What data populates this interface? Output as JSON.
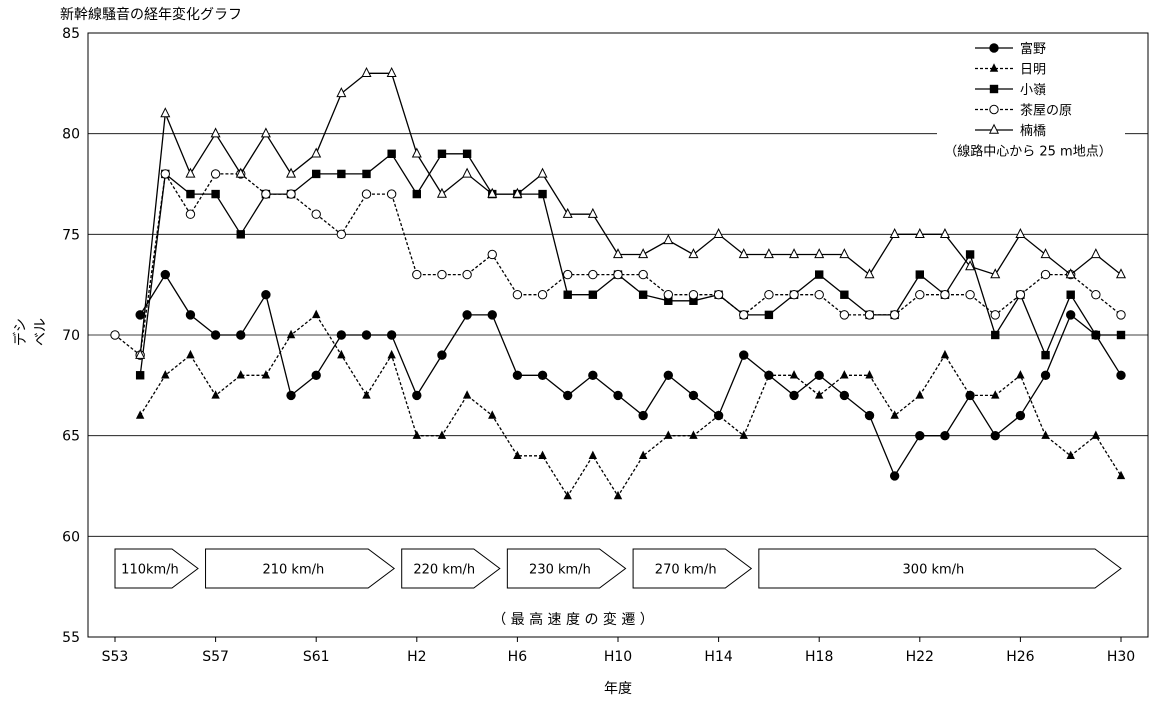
{
  "chart_data": {
    "type": "line",
    "title": "新幹線騒音の経年変化グラフ",
    "xlabel": "年度",
    "ylabel": "デシベル",
    "ylim": [
      55,
      85
    ],
    "yticks": [
      55,
      60,
      65,
      70,
      75,
      80,
      85
    ],
    "x_tick_labels": [
      "S53",
      "S57",
      "S61",
      "H2",
      "H6",
      "H10",
      "H14",
      "H18",
      "H22",
      "H26",
      "H30"
    ],
    "x": [
      "S53",
      "S54",
      "S55",
      "S56",
      "S57",
      "S58",
      "S59",
      "S60",
      "S61",
      "S62",
      "S63",
      "H1",
      "H2",
      "H3",
      "H4",
      "H5",
      "H6",
      "H7",
      "H8",
      "H9",
      "H10",
      "H11",
      "H12",
      "H13",
      "H14",
      "H15",
      "H16",
      "H17",
      "H18",
      "H19",
      "H20",
      "H21",
      "H22",
      "H23",
      "H24",
      "H25",
      "H26",
      "H27",
      "H28",
      "H29",
      "H30"
    ],
    "grid": "horizontal",
    "legend_placement": "top-right",
    "legend_note": "（線路中心から 25 m地点）",
    "series": [
      {
        "name": "富野",
        "style": "solid",
        "marker": "filled-circle",
        "values": [
          null,
          71,
          73,
          71,
          70,
          70,
          72,
          67,
          68,
          70,
          70,
          70,
          67,
          69,
          71,
          71,
          68,
          68,
          67,
          68,
          67,
          66,
          68,
          67,
          66,
          69,
          68,
          67,
          68,
          67,
          66,
          63,
          65,
          65,
          67,
          65,
          66,
          68,
          71,
          70,
          68
        ]
      },
      {
        "name": "日明",
        "style": "dashed",
        "marker": "filled-triangle",
        "values": [
          null,
          66,
          68,
          69,
          67,
          68,
          68,
          70,
          71,
          69,
          67,
          69,
          65,
          65,
          67,
          66,
          64,
          64,
          62,
          64,
          62,
          64,
          65,
          65,
          66,
          65,
          68,
          68,
          67,
          68,
          68,
          66,
          67,
          69,
          67,
          67,
          68,
          65,
          64,
          65,
          63
        ]
      },
      {
        "name": "小嶺",
        "style": "solid",
        "marker": "filled-square",
        "values": [
          null,
          68,
          78,
          77,
          77,
          75,
          77,
          77,
          78,
          78,
          78,
          79,
          77,
          79,
          79,
          77,
          77,
          77,
          72,
          72,
          73,
          72,
          71.7,
          71.7,
          72,
          71,
          71,
          72,
          73,
          72,
          71,
          71,
          73,
          72,
          74,
          70,
          72,
          69,
          72,
          70,
          70
        ]
      },
      {
        "name": "茶屋の原",
        "style": "dashed",
        "marker": "open-circle",
        "values": [
          70,
          69,
          78,
          76,
          78,
          78,
          77,
          77,
          76,
          75,
          77,
          77,
          73,
          73,
          73,
          74,
          72,
          72,
          73,
          73,
          73,
          73,
          72,
          72,
          72,
          71,
          72,
          72,
          72,
          71,
          71,
          71,
          72,
          72,
          72,
          71,
          72,
          73,
          73,
          72,
          71
        ]
      },
      {
        "name": "楠橋",
        "style": "solid",
        "marker": "open-triangle",
        "values": [
          null,
          69,
          81,
          78,
          80,
          78,
          80,
          78,
          79,
          82,
          83,
          83,
          79,
          77,
          78,
          77,
          77,
          78,
          76,
          76,
          74,
          74,
          74.7,
          74,
          75,
          74,
          74,
          74,
          74,
          74,
          73,
          75,
          75,
          75,
          73.4,
          73,
          75,
          74,
          73,
          74,
          73
        ]
      }
    ],
    "speed_bands": [
      {
        "label": "110km/h",
        "start": 0,
        "end": 3.3
      },
      {
        "label": "210 km/h",
        "start": 3.6,
        "end": 11.1
      },
      {
        "label": "220 km/h",
        "start": 11.4,
        "end": 15.3
      },
      {
        "label": "230 km/h",
        "start": 15.6,
        "end": 20.3
      },
      {
        "label": "270 km/h",
        "start": 20.6,
        "end": 25.3
      },
      {
        "label": "300 km/h",
        "start": 25.6,
        "end": 40
      }
    ],
    "speed_caption": "（ 最 高 速 度 の 変 遷 ）",
    "colors": {
      "line": "#000000",
      "grid": "#000000",
      "background": "#ffffff"
    }
  }
}
